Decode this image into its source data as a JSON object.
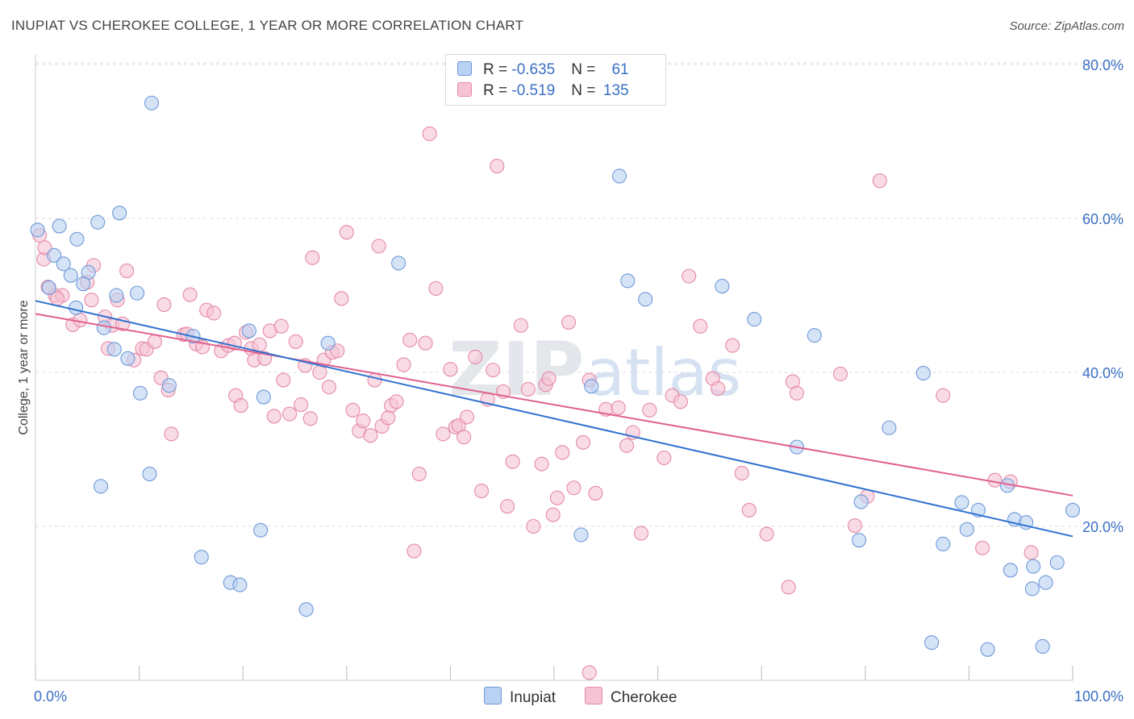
{
  "header": {
    "title": "INUPIAT VS CHEROKEE COLLEGE, 1 YEAR OR MORE CORRELATION CHART",
    "source": "Source: ZipAtlas.com"
  },
  "legend": {
    "rows": [
      {
        "r_label": "R = ",
        "r_value": "-0.635",
        "n_label": "N = ",
        "n_value": " 61"
      },
      {
        "r_label": "R = ",
        "r_value": " -0.519",
        "n_label": "N = ",
        "n_value": "135"
      }
    ]
  },
  "watermark": {
    "zip": "ZIP",
    "atlas": "atlas"
  },
  "colors": {
    "inupiat_fill": "#b9d1f2",
    "inupiat_stroke": "#6f9ad8",
    "inupiat_line": "#2f72d0",
    "cherokee_fill": "#f5c3d3",
    "cherokee_stroke": "#e58aa8",
    "cherokee_line": "#e0608e",
    "grid": "#dddddd",
    "tick_text": "#3a6fc4"
  },
  "chart_data": {
    "type": "scatter",
    "ylabel": "College, 1 year or more",
    "xlim": [
      0,
      100
    ],
    "ylim": [
      0,
      82
    ],
    "x_ticks": [
      "0.0%",
      "100.0%"
    ],
    "y_ticks": [
      {
        "value": 20,
        "label": "20.0%"
      },
      {
        "value": 40,
        "label": "40.0%"
      },
      {
        "value": 60,
        "label": "60.0%"
      },
      {
        "value": 80,
        "label": "80.0%"
      }
    ],
    "grid": true,
    "legend_position": "top-center",
    "series": [
      {
        "name": "Inupiat",
        "color": "#b9d1f2",
        "trend": [
          [
            0,
            49.3
          ],
          [
            100,
            18.7
          ]
        ],
        "points": [
          [
            0.2,
            58.5
          ],
          [
            2.3,
            59.0
          ],
          [
            4.0,
            57.3
          ],
          [
            6.0,
            59.5
          ],
          [
            8.1,
            60.7
          ],
          [
            11.2,
            75.0
          ],
          [
            1.8,
            55.2
          ],
          [
            2.7,
            54.1
          ],
          [
            3.4,
            52.6
          ],
          [
            5.1,
            53.0
          ],
          [
            4.6,
            51.5
          ],
          [
            1.3,
            51.0
          ],
          [
            7.8,
            50.0
          ],
          [
            9.8,
            50.3
          ],
          [
            6.6,
            45.8
          ],
          [
            7.6,
            43.0
          ],
          [
            8.9,
            41.8
          ],
          [
            10.1,
            37.3
          ],
          [
            11.0,
            26.8
          ],
          [
            6.3,
            25.2
          ],
          [
            15.2,
            44.7
          ],
          [
            20.6,
            45.4
          ],
          [
            22.0,
            36.8
          ],
          [
            28.2,
            43.8
          ],
          [
            35.0,
            54.2
          ],
          [
            21.7,
            19.5
          ],
          [
            16.0,
            16.0
          ],
          [
            18.8,
            12.7
          ],
          [
            19.7,
            12.4
          ],
          [
            26.1,
            9.2
          ],
          [
            52.6,
            18.9
          ],
          [
            56.3,
            65.5
          ],
          [
            57.1,
            51.9
          ],
          [
            58.8,
            49.5
          ],
          [
            53.6,
            38.2
          ],
          [
            66.2,
            51.2
          ],
          [
            69.3,
            46.9
          ],
          [
            73.4,
            30.3
          ],
          [
            75.1,
            44.8
          ],
          [
            79.6,
            23.2
          ],
          [
            79.4,
            18.2
          ],
          [
            82.3,
            32.8
          ],
          [
            85.6,
            39.9
          ],
          [
            86.4,
            4.9
          ],
          [
            87.5,
            17.7
          ],
          [
            89.3,
            23.1
          ],
          [
            89.8,
            19.6
          ],
          [
            90.9,
            22.1
          ],
          [
            93.7,
            25.3
          ],
          [
            94.4,
            20.9
          ],
          [
            95.5,
            20.5
          ],
          [
            94.0,
            14.3
          ],
          [
            96.2,
            14.8
          ],
          [
            97.4,
            12.7
          ],
          [
            96.1,
            11.9
          ],
          [
            91.8,
            4.0
          ],
          [
            97.1,
            4.4
          ],
          [
            98.5,
            15.3
          ],
          [
            100.0,
            22.1
          ],
          [
            3.9,
            48.4
          ],
          [
            12.9,
            38.3
          ]
        ]
      },
      {
        "name": "Cherokee",
        "color": "#f5c3d3",
        "trend": [
          [
            0,
            47.6
          ],
          [
            100,
            24.0
          ]
        ],
        "points": [
          [
            0.4,
            57.8
          ],
          [
            0.8,
            54.7
          ],
          [
            1.2,
            51.1
          ],
          [
            1.9,
            50.0
          ],
          [
            2.6,
            50.0
          ],
          [
            3.6,
            46.2
          ],
          [
            4.3,
            46.8
          ],
          [
            5.0,
            51.7
          ],
          [
            5.6,
            53.9
          ],
          [
            5.4,
            49.4
          ],
          [
            6.7,
            47.2
          ],
          [
            7.4,
            46.1
          ],
          [
            7.0,
            43.1
          ],
          [
            7.9,
            49.4
          ],
          [
            8.4,
            46.3
          ],
          [
            8.8,
            53.2
          ],
          [
            9.5,
            41.6
          ],
          [
            10.3,
            43.1
          ],
          [
            10.7,
            43.0
          ],
          [
            11.5,
            44.0
          ],
          [
            12.1,
            39.3
          ],
          [
            12.4,
            48.8
          ],
          [
            12.8,
            37.7
          ],
          [
            13.1,
            32.0
          ],
          [
            14.3,
            44.9
          ],
          [
            14.6,
            45.0
          ],
          [
            14.9,
            50.1
          ],
          [
            15.5,
            43.7
          ],
          [
            16.1,
            43.3
          ],
          [
            16.5,
            48.1
          ],
          [
            17.2,
            47.7
          ],
          [
            17.9,
            42.8
          ],
          [
            18.6,
            43.5
          ],
          [
            19.2,
            43.8
          ],
          [
            19.3,
            37.0
          ],
          [
            19.8,
            35.7
          ],
          [
            20.3,
            45.2
          ],
          [
            20.8,
            43.1
          ],
          [
            21.1,
            41.6
          ],
          [
            21.6,
            43.6
          ],
          [
            22.1,
            41.8
          ],
          [
            22.6,
            45.4
          ],
          [
            23.0,
            34.3
          ],
          [
            23.7,
            46.0
          ],
          [
            23.9,
            39.0
          ],
          [
            24.5,
            34.6
          ],
          [
            25.1,
            44.0
          ],
          [
            25.6,
            35.8
          ],
          [
            26.0,
            40.9
          ],
          [
            26.5,
            34.0
          ],
          [
            26.7,
            54.9
          ],
          [
            27.4,
            40.0
          ],
          [
            27.8,
            41.6
          ],
          [
            28.3,
            38.1
          ],
          [
            28.6,
            42.6
          ],
          [
            29.1,
            42.8
          ],
          [
            29.5,
            49.6
          ],
          [
            30.0,
            58.2
          ],
          [
            30.6,
            35.1
          ],
          [
            31.2,
            32.4
          ],
          [
            31.6,
            33.7
          ],
          [
            32.3,
            31.8
          ],
          [
            32.7,
            39.0
          ],
          [
            33.1,
            56.4
          ],
          [
            33.4,
            33.0
          ],
          [
            34.0,
            34.1
          ],
          [
            34.3,
            35.7
          ],
          [
            34.8,
            36.2
          ],
          [
            35.5,
            41.0
          ],
          [
            36.1,
            44.2
          ],
          [
            36.5,
            16.8
          ],
          [
            37.0,
            26.8
          ],
          [
            37.6,
            43.8
          ],
          [
            38.0,
            71.0
          ],
          [
            38.6,
            50.9
          ],
          [
            39.3,
            32.0
          ],
          [
            40.0,
            40.4
          ],
          [
            40.5,
            32.9
          ],
          [
            40.8,
            33.1
          ],
          [
            41.3,
            31.6
          ],
          [
            41.6,
            34.2
          ],
          [
            42.4,
            42.0
          ],
          [
            43.0,
            24.6
          ],
          [
            43.6,
            36.5
          ],
          [
            44.1,
            40.3
          ],
          [
            44.5,
            66.8
          ],
          [
            45.1,
            37.5
          ],
          [
            45.5,
            22.6
          ],
          [
            46.0,
            28.4
          ],
          [
            46.8,
            46.1
          ],
          [
            47.5,
            37.8
          ],
          [
            48.0,
            20.0
          ],
          [
            48.8,
            28.1
          ],
          [
            49.2,
            38.4
          ],
          [
            49.5,
            39.2
          ],
          [
            49.9,
            21.5
          ],
          [
            50.3,
            23.7
          ],
          [
            50.8,
            29.6
          ],
          [
            51.4,
            46.5
          ],
          [
            51.9,
            25.0
          ],
          [
            52.8,
            30.9
          ],
          [
            53.4,
            39.0
          ],
          [
            54.0,
            24.3
          ],
          [
            55.0,
            35.2
          ],
          [
            56.2,
            35.4
          ],
          [
            57.0,
            30.5
          ],
          [
            57.6,
            32.2
          ],
          [
            58.4,
            19.1
          ],
          [
            59.2,
            35.1
          ],
          [
            60.6,
            28.9
          ],
          [
            61.4,
            37.0
          ],
          [
            62.2,
            36.2
          ],
          [
            63.0,
            52.5
          ],
          [
            64.1,
            46.0
          ],
          [
            65.3,
            39.2
          ],
          [
            65.8,
            37.9
          ],
          [
            67.2,
            43.5
          ],
          [
            68.1,
            26.9
          ],
          [
            68.8,
            22.1
          ],
          [
            70.5,
            19.0
          ],
          [
            72.6,
            12.1
          ],
          [
            73.0,
            38.8
          ],
          [
            73.4,
            37.3
          ],
          [
            77.6,
            39.8
          ],
          [
            79.0,
            20.1
          ],
          [
            80.2,
            23.9
          ],
          [
            81.4,
            64.9
          ],
          [
            87.5,
            37.0
          ],
          [
            91.3,
            17.2
          ],
          [
            92.5,
            26.0
          ],
          [
            94.0,
            25.8
          ],
          [
            96.0,
            16.6
          ],
          [
            53.4,
            1.0
          ],
          [
            0.9,
            56.2
          ],
          [
            2.1,
            49.6
          ]
        ]
      }
    ]
  },
  "bottom_legend": {
    "inupiat": "Inupiat",
    "cherokee": "Cherokee"
  }
}
